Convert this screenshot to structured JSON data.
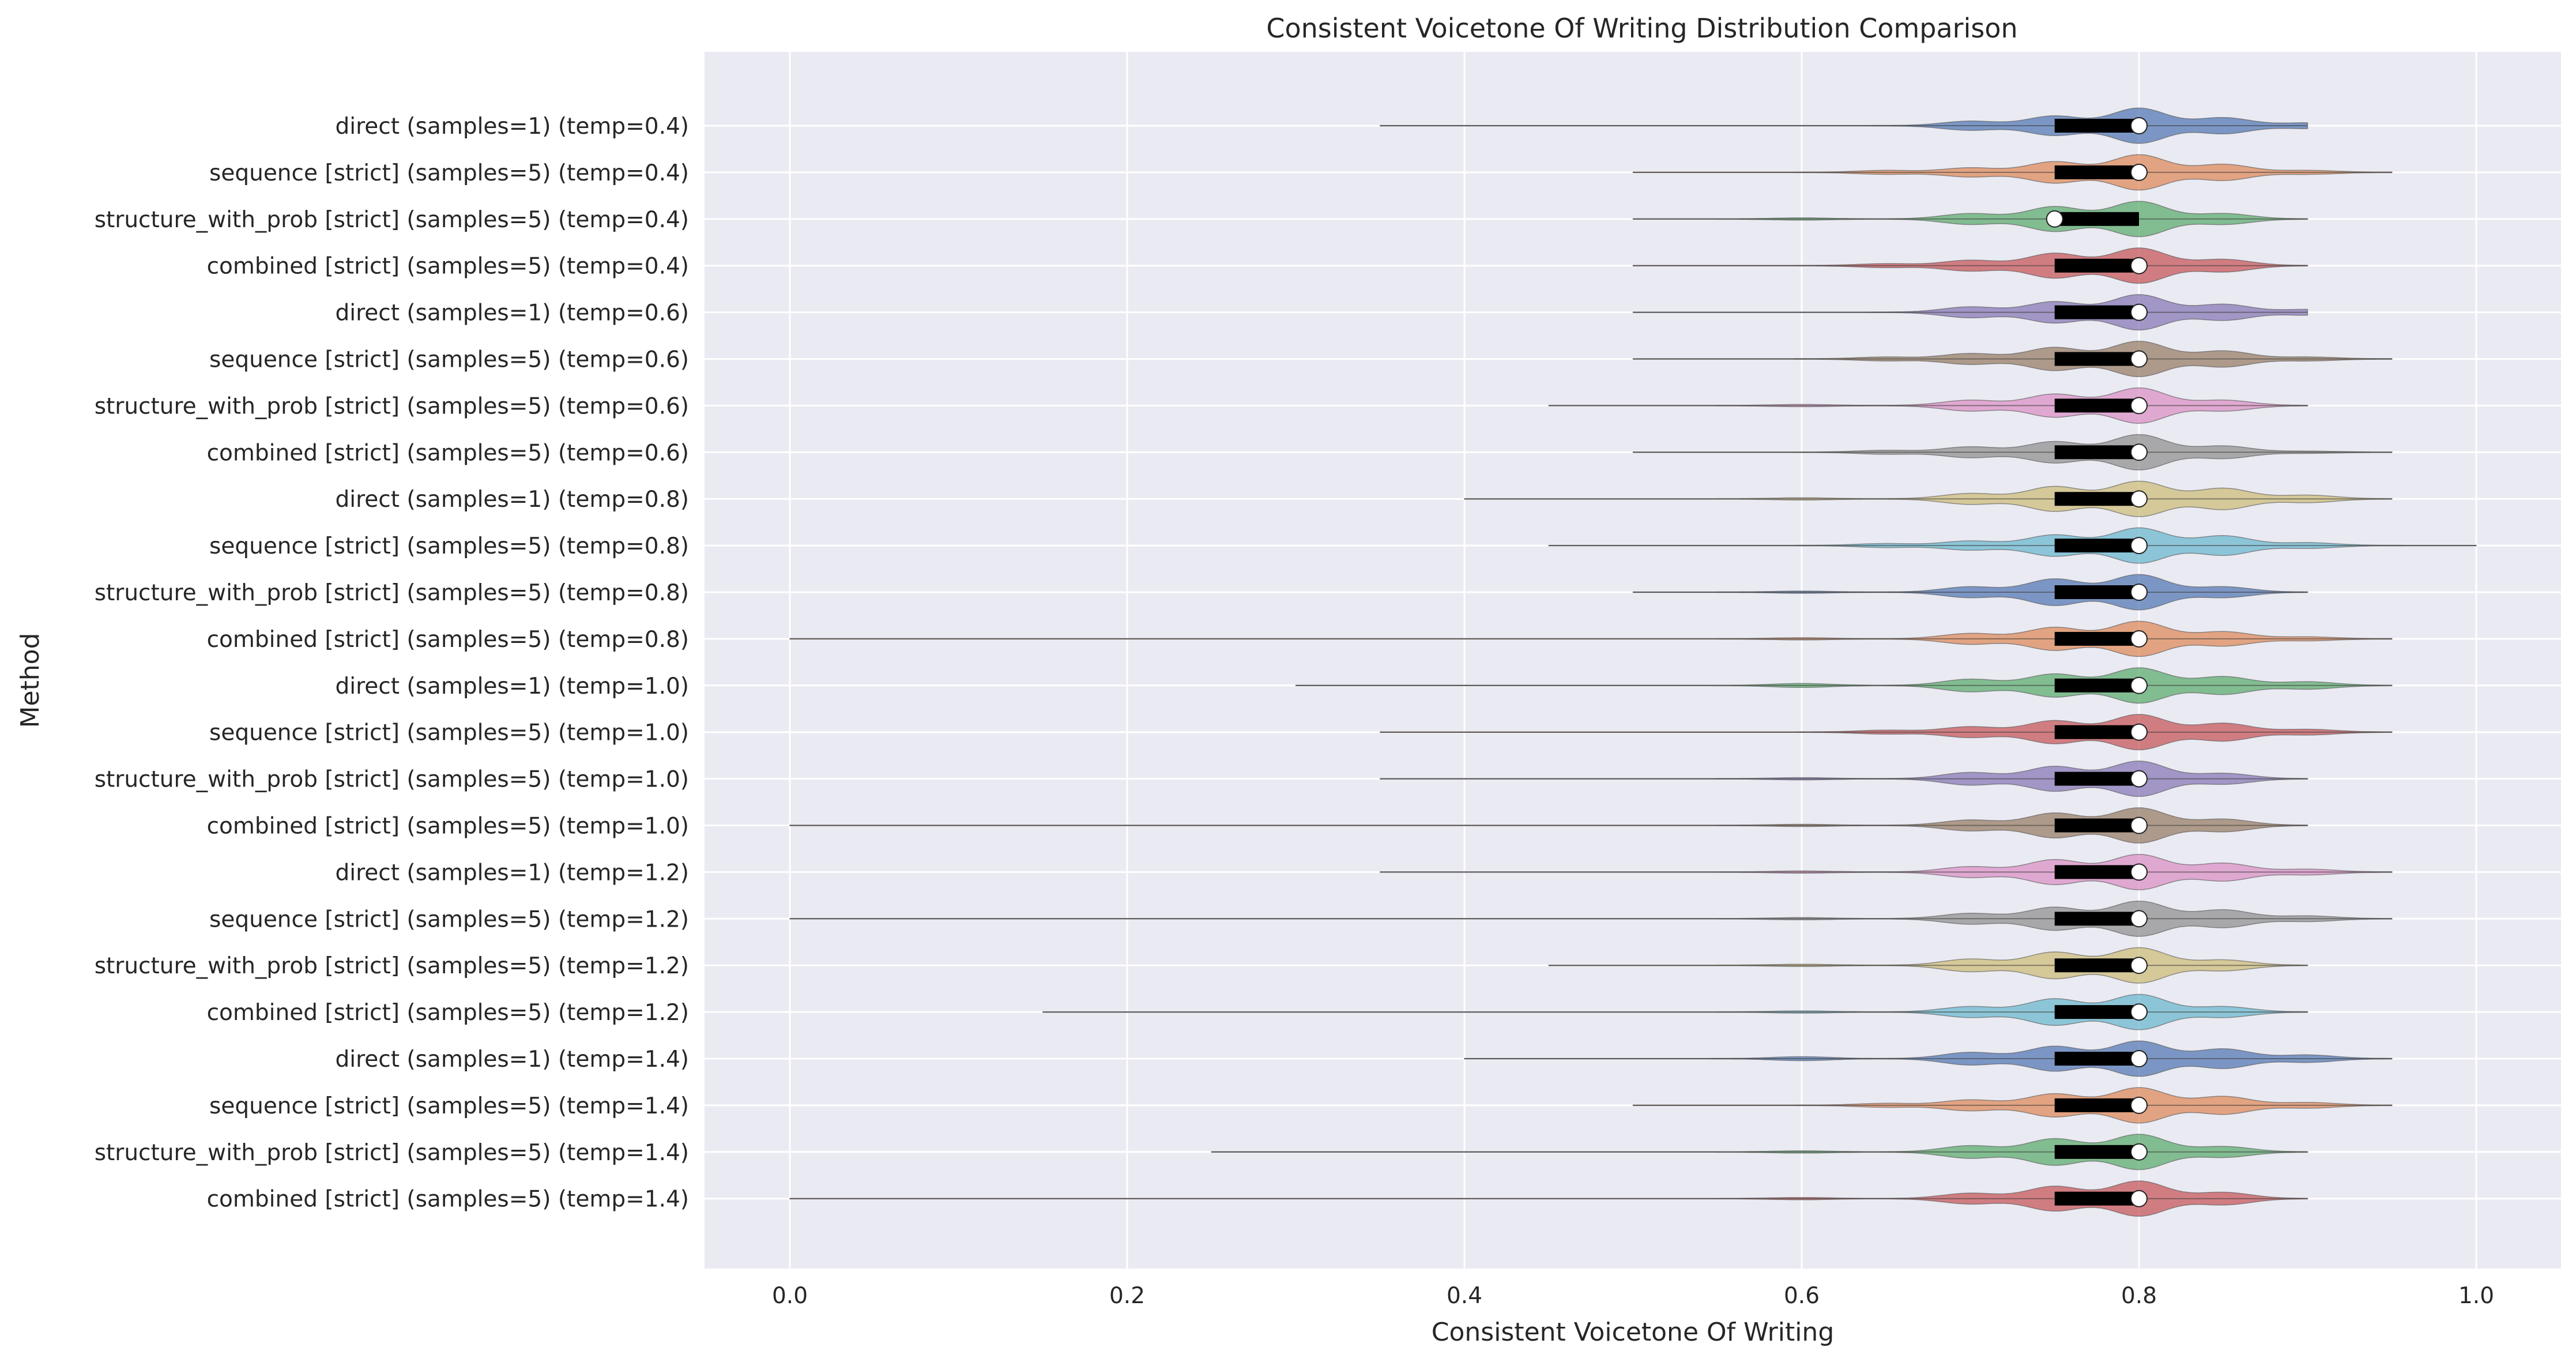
{
  "chart_data": {
    "type": "violin",
    "orientation": "horizontal",
    "title": "Consistent Voicetone Of Writing Distribution Comparison",
    "xlabel": "Consistent Voicetone Of Writing",
    "ylabel": "Method",
    "xlim": [
      -0.05,
      1.05
    ],
    "xticks": [
      0.0,
      0.2,
      0.4,
      0.6,
      0.8,
      1.0
    ],
    "xtick_labels": [
      "0.0",
      "0.2",
      "0.4",
      "0.6",
      "0.8",
      "1.0"
    ],
    "grid": true,
    "legend": "none",
    "series": [
      {
        "name": "direct (samples=1) (temp=0.4)",
        "color": "#4c72b0",
        "min": 0.35,
        "q1": 0.75,
        "median": 0.8,
        "q3": 0.8,
        "max": 0.9,
        "modes": [
          [
            0.7,
            0.25
          ],
          [
            0.75,
            0.55
          ],
          [
            0.8,
            1.0
          ],
          [
            0.85,
            0.45
          ],
          [
            0.9,
            0.15
          ]
        ]
      },
      {
        "name": "sequence [strict] (samples=5) (temp=0.4)",
        "color": "#dd8452",
        "min": 0.5,
        "q1": 0.75,
        "median": 0.8,
        "q3": 0.8,
        "max": 0.95,
        "modes": [
          [
            0.65,
            0.1
          ],
          [
            0.7,
            0.25
          ],
          [
            0.75,
            0.6
          ],
          [
            0.8,
            1.0
          ],
          [
            0.85,
            0.45
          ],
          [
            0.9,
            0.1
          ]
        ]
      },
      {
        "name": "structure_with_prob [strict] (samples=5) (temp=0.4)",
        "color": "#55a868",
        "min": 0.5,
        "q1": 0.75,
        "median": 0.75,
        "q3": 0.8,
        "max": 0.9,
        "modes": [
          [
            0.6,
            0.05
          ],
          [
            0.7,
            0.3
          ],
          [
            0.75,
            0.7
          ],
          [
            0.8,
            1.0
          ],
          [
            0.85,
            0.3
          ]
        ]
      },
      {
        "name": "combined [strict] (samples=5) (temp=0.4)",
        "color": "#c44e52",
        "min": 0.5,
        "q1": 0.75,
        "median": 0.8,
        "q3": 0.8,
        "max": 0.9,
        "modes": [
          [
            0.65,
            0.1
          ],
          [
            0.7,
            0.3
          ],
          [
            0.75,
            0.7
          ],
          [
            0.8,
            1.0
          ],
          [
            0.85,
            0.35
          ]
        ]
      },
      {
        "name": "direct (samples=1) (temp=0.6)",
        "color": "#8172b3",
        "min": 0.5,
        "q1": 0.75,
        "median": 0.8,
        "q3": 0.8,
        "max": 0.9,
        "modes": [
          [
            0.7,
            0.3
          ],
          [
            0.75,
            0.6
          ],
          [
            0.8,
            1.0
          ],
          [
            0.85,
            0.45
          ],
          [
            0.9,
            0.15
          ]
        ]
      },
      {
        "name": "sequence [strict] (samples=5) (temp=0.6)",
        "color": "#937860",
        "min": 0.5,
        "q1": 0.75,
        "median": 0.8,
        "q3": 0.8,
        "max": 0.95,
        "modes": [
          [
            0.65,
            0.1
          ],
          [
            0.7,
            0.3
          ],
          [
            0.75,
            0.65
          ],
          [
            0.8,
            1.0
          ],
          [
            0.85,
            0.45
          ],
          [
            0.9,
            0.1
          ]
        ]
      },
      {
        "name": "structure_with_prob [strict] (samples=5) (temp=0.6)",
        "color": "#da8bc3",
        "min": 0.45,
        "q1": 0.75,
        "median": 0.8,
        "q3": 0.8,
        "max": 0.9,
        "modes": [
          [
            0.6,
            0.05
          ],
          [
            0.7,
            0.3
          ],
          [
            0.75,
            0.65
          ],
          [
            0.8,
            1.0
          ],
          [
            0.85,
            0.3
          ]
        ]
      },
      {
        "name": "combined [strict] (samples=5) (temp=0.6)",
        "color": "#8c8c8c",
        "min": 0.5,
        "q1": 0.75,
        "median": 0.8,
        "q3": 0.8,
        "max": 0.95,
        "modes": [
          [
            0.65,
            0.1
          ],
          [
            0.7,
            0.3
          ],
          [
            0.75,
            0.6
          ],
          [
            0.8,
            1.0
          ],
          [
            0.85,
            0.35
          ],
          [
            0.9,
            0.05
          ]
        ]
      },
      {
        "name": "direct (samples=1) (temp=0.8)",
        "color": "#ccb974",
        "min": 0.4,
        "q1": 0.75,
        "median": 0.8,
        "q3": 0.8,
        "max": 0.95,
        "modes": [
          [
            0.6,
            0.05
          ],
          [
            0.7,
            0.3
          ],
          [
            0.75,
            0.7
          ],
          [
            0.8,
            1.0
          ],
          [
            0.85,
            0.6
          ],
          [
            0.9,
            0.2
          ]
        ]
      },
      {
        "name": "sequence [strict] (samples=5) (temp=0.8)",
        "color": "#64b5cd",
        "min": 0.45,
        "q1": 0.75,
        "median": 0.8,
        "q3": 0.8,
        "max": 1.0,
        "modes": [
          [
            0.65,
            0.1
          ],
          [
            0.7,
            0.25
          ],
          [
            0.75,
            0.6
          ],
          [
            0.8,
            1.0
          ],
          [
            0.85,
            0.55
          ],
          [
            0.9,
            0.15
          ]
        ]
      },
      {
        "name": "structure_with_prob [strict] (samples=5) (temp=0.8)",
        "color": "#4c72b0",
        "min": 0.5,
        "q1": 0.75,
        "median": 0.8,
        "q3": 0.8,
        "max": 0.9,
        "modes": [
          [
            0.6,
            0.05
          ],
          [
            0.7,
            0.3
          ],
          [
            0.75,
            0.75
          ],
          [
            0.8,
            1.0
          ],
          [
            0.85,
            0.3
          ]
        ]
      },
      {
        "name": "combined [strict] (samples=5) (temp=0.8)",
        "color": "#dd8452",
        "min": 0.0,
        "q1": 0.75,
        "median": 0.8,
        "q3": 0.8,
        "max": 0.95,
        "modes": [
          [
            0.6,
            0.05
          ],
          [
            0.7,
            0.3
          ],
          [
            0.75,
            0.65
          ],
          [
            0.8,
            1.0
          ],
          [
            0.85,
            0.4
          ],
          [
            0.9,
            0.1
          ]
        ]
      },
      {
        "name": "direct (samples=1) (temp=1.0)",
        "color": "#55a868",
        "min": 0.3,
        "q1": 0.75,
        "median": 0.8,
        "q3": 0.8,
        "max": 0.95,
        "modes": [
          [
            0.6,
            0.1
          ],
          [
            0.7,
            0.35
          ],
          [
            0.75,
            0.65
          ],
          [
            0.8,
            1.0
          ],
          [
            0.85,
            0.5
          ],
          [
            0.9,
            0.2
          ]
        ]
      },
      {
        "name": "sequence [strict] (samples=5) (temp=1.0)",
        "color": "#c44e52",
        "min": 0.35,
        "q1": 0.75,
        "median": 0.8,
        "q3": 0.8,
        "max": 0.95,
        "modes": [
          [
            0.65,
            0.1
          ],
          [
            0.7,
            0.3
          ],
          [
            0.75,
            0.65
          ],
          [
            0.8,
            1.0
          ],
          [
            0.85,
            0.5
          ],
          [
            0.9,
            0.15
          ]
        ]
      },
      {
        "name": "structure_with_prob [strict] (samples=5) (temp=1.0)",
        "color": "#8172b3",
        "min": 0.35,
        "q1": 0.75,
        "median": 0.8,
        "q3": 0.8,
        "max": 0.9,
        "modes": [
          [
            0.6,
            0.05
          ],
          [
            0.7,
            0.35
          ],
          [
            0.75,
            0.7
          ],
          [
            0.8,
            1.0
          ],
          [
            0.85,
            0.3
          ]
        ]
      },
      {
        "name": "combined [strict] (samples=5) (temp=1.0)",
        "color": "#937860",
        "min": 0.0,
        "q1": 0.75,
        "median": 0.8,
        "q3": 0.8,
        "max": 0.9,
        "modes": [
          [
            0.6,
            0.05
          ],
          [
            0.7,
            0.3
          ],
          [
            0.75,
            0.7
          ],
          [
            0.8,
            1.0
          ],
          [
            0.85,
            0.35
          ]
        ]
      },
      {
        "name": "direct (samples=1) (temp=1.2)",
        "color": "#da8bc3",
        "min": 0.35,
        "q1": 0.75,
        "median": 0.8,
        "q3": 0.8,
        "max": 0.95,
        "modes": [
          [
            0.6,
            0.05
          ],
          [
            0.7,
            0.3
          ],
          [
            0.75,
            0.7
          ],
          [
            0.8,
            1.0
          ],
          [
            0.85,
            0.5
          ],
          [
            0.9,
            0.15
          ]
        ]
      },
      {
        "name": "sequence [strict] (samples=5) (temp=1.2)",
        "color": "#8c8c8c",
        "min": 0.0,
        "q1": 0.75,
        "median": 0.8,
        "q3": 0.8,
        "max": 0.95,
        "modes": [
          [
            0.6,
            0.05
          ],
          [
            0.7,
            0.3
          ],
          [
            0.75,
            0.65
          ],
          [
            0.8,
            1.0
          ],
          [
            0.85,
            0.5
          ],
          [
            0.9,
            0.15
          ]
        ]
      },
      {
        "name": "structure_with_prob [strict] (samples=5) (temp=1.2)",
        "color": "#ccb974",
        "min": 0.45,
        "q1": 0.75,
        "median": 0.8,
        "q3": 0.8,
        "max": 0.9,
        "modes": [
          [
            0.6,
            0.05
          ],
          [
            0.7,
            0.35
          ],
          [
            0.75,
            0.75
          ],
          [
            0.8,
            1.0
          ],
          [
            0.85,
            0.3
          ]
        ]
      },
      {
        "name": "combined [strict] (samples=5) (temp=1.2)",
        "color": "#64b5cd",
        "min": 0.15,
        "q1": 0.75,
        "median": 0.8,
        "q3": 0.8,
        "max": 0.9,
        "modes": [
          [
            0.6,
            0.05
          ],
          [
            0.7,
            0.3
          ],
          [
            0.75,
            0.75
          ],
          [
            0.8,
            1.0
          ],
          [
            0.85,
            0.3
          ]
        ]
      },
      {
        "name": "direct (samples=1) (temp=1.4)",
        "color": "#4c72b0",
        "min": 0.4,
        "q1": 0.75,
        "median": 0.8,
        "q3": 0.8,
        "max": 0.95,
        "modes": [
          [
            0.6,
            0.1
          ],
          [
            0.7,
            0.35
          ],
          [
            0.75,
            0.7
          ],
          [
            0.8,
            1.0
          ],
          [
            0.85,
            0.55
          ],
          [
            0.9,
            0.2
          ]
        ]
      },
      {
        "name": "sequence [strict] (samples=5) (temp=1.4)",
        "color": "#dd8452",
        "min": 0.5,
        "q1": 0.75,
        "median": 0.8,
        "q3": 0.8,
        "max": 0.95,
        "modes": [
          [
            0.65,
            0.1
          ],
          [
            0.7,
            0.3
          ],
          [
            0.75,
            0.65
          ],
          [
            0.8,
            1.0
          ],
          [
            0.85,
            0.5
          ],
          [
            0.9,
            0.15
          ]
        ]
      },
      {
        "name": "structure_with_prob [strict] (samples=5) (temp=1.4)",
        "color": "#55a868",
        "min": 0.25,
        "q1": 0.75,
        "median": 0.8,
        "q3": 0.8,
        "max": 0.9,
        "modes": [
          [
            0.6,
            0.05
          ],
          [
            0.7,
            0.35
          ],
          [
            0.75,
            0.75
          ],
          [
            0.8,
            1.0
          ],
          [
            0.85,
            0.3
          ]
        ]
      },
      {
        "name": "combined [strict] (samples=5) (temp=1.4)",
        "color": "#c44e52",
        "min": 0.0,
        "q1": 0.75,
        "median": 0.8,
        "q3": 0.8,
        "max": 0.9,
        "modes": [
          [
            0.6,
            0.05
          ],
          [
            0.7,
            0.3
          ],
          [
            0.75,
            0.7
          ],
          [
            0.8,
            1.0
          ],
          [
            0.85,
            0.35
          ]
        ]
      }
    ]
  }
}
